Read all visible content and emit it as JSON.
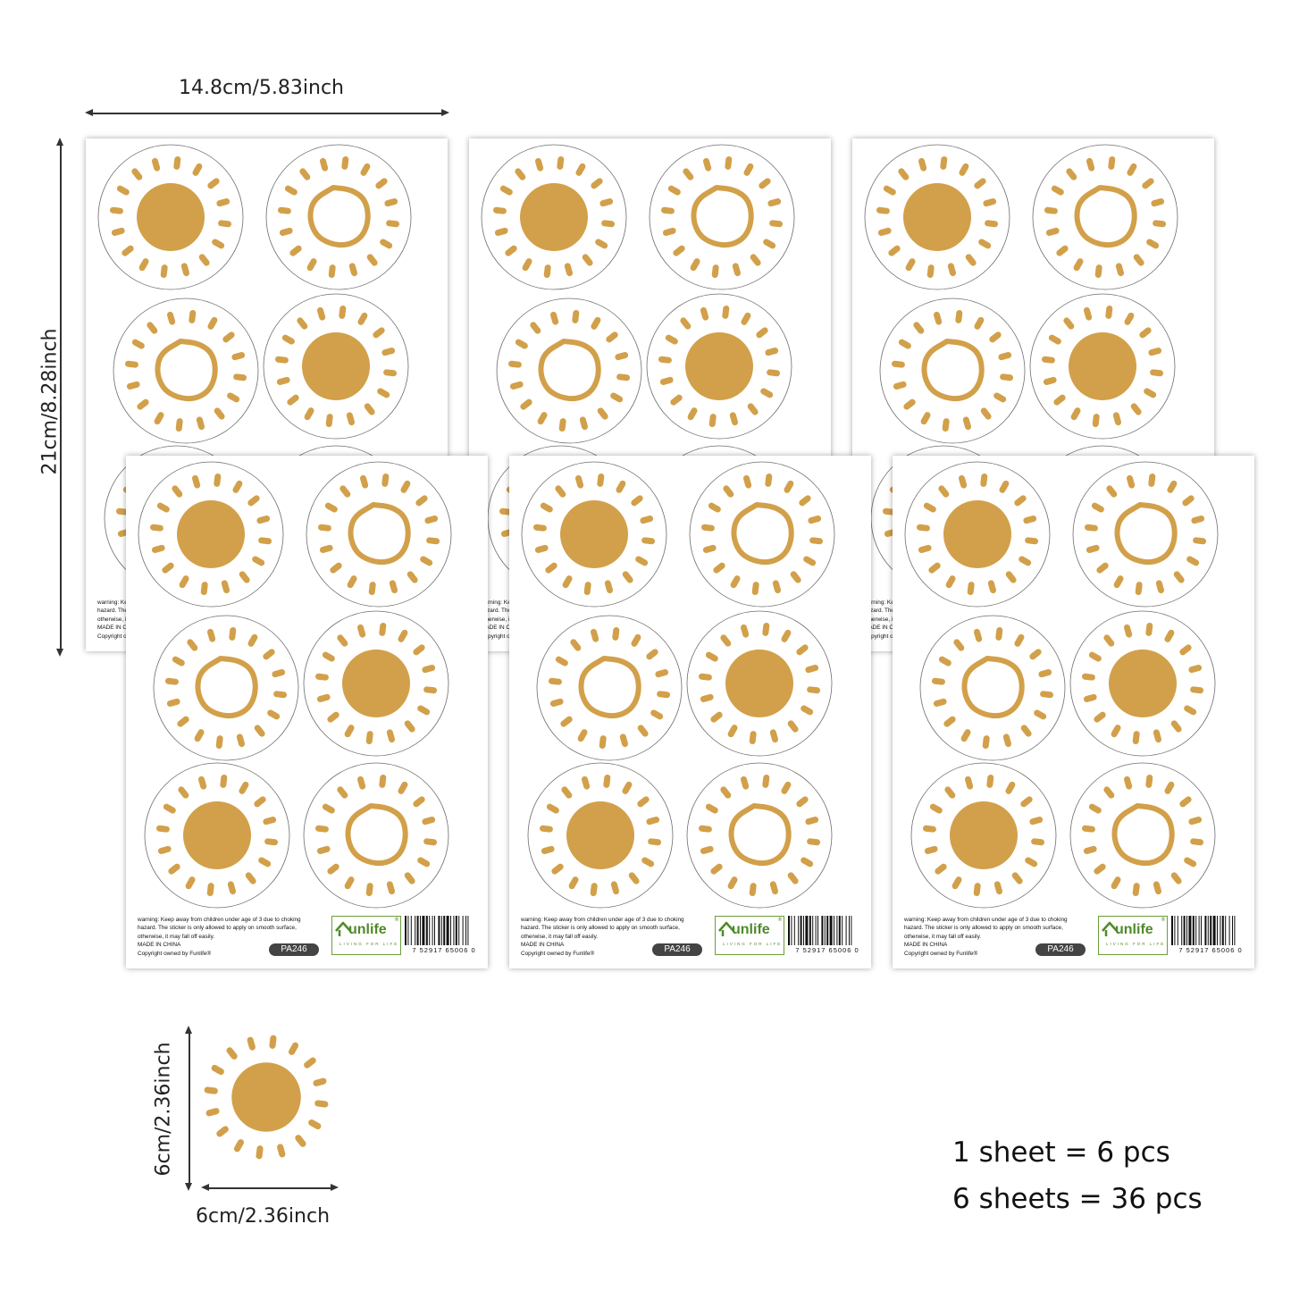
{
  "dimensions": {
    "sheet_width": "14.8cm/5.83inch",
    "sheet_height": "21cm/8.28inch",
    "sticker_height": "6cm/2.36inch",
    "sticker_width": "6cm/2.36inch"
  },
  "sheet": {
    "warning_lines": [
      "warning: Keep away from children under age of 3 due to choking",
      "hazard. The sticker is only allowed to apply on smooth surface,",
      "otherwise, it may fall off easily.",
      "MADE IN CHINA",
      "Copyright owned by Funlife®"
    ],
    "product_code": "PA246",
    "brand_logo_text": "unlife",
    "brand_tagline": "LIVING FOR LIFE",
    "barcode_number": "7 52917 65006 0",
    "sticker_pattern": [
      "filled-sun",
      "outline-sun",
      "outline-sun",
      "filled-sun",
      "filled-sun",
      "outline-sun"
    ]
  },
  "summary": {
    "per_sheet": "1 sheet = 6 pcs",
    "total": "6 sheets = 36 pcs"
  },
  "colors": {
    "sun": "#D2A04A",
    "sticker_border": "#6e6e6e",
    "brand_green": "#4e8a2a"
  }
}
